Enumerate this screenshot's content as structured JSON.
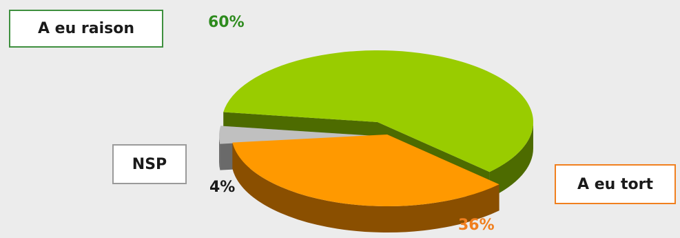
{
  "chart_data": {
    "type": "pie",
    "style": "3d-exploded",
    "title": "",
    "slices": [
      {
        "label": "A eu raison",
        "value": 60,
        "value_label": "60%",
        "color": "#99cc00",
        "side_color": "#4d6b00",
        "label_border": "#3e8f3e",
        "value_color": "#2e8b1e"
      },
      {
        "label": "A eu tort",
        "value": 36,
        "value_label": "36%",
        "color": "#ff9900",
        "side_color": "#8a4f00",
        "label_border": "#f07f1e",
        "value_color": "#f07f1e"
      },
      {
        "label": "NSP",
        "value": 4,
        "value_label": "4%",
        "color": "#c0c0c0",
        "side_color": "#6a6a6a",
        "label_border": "#9a9a9a",
        "value_color": "#1a1a1a"
      }
    ]
  }
}
